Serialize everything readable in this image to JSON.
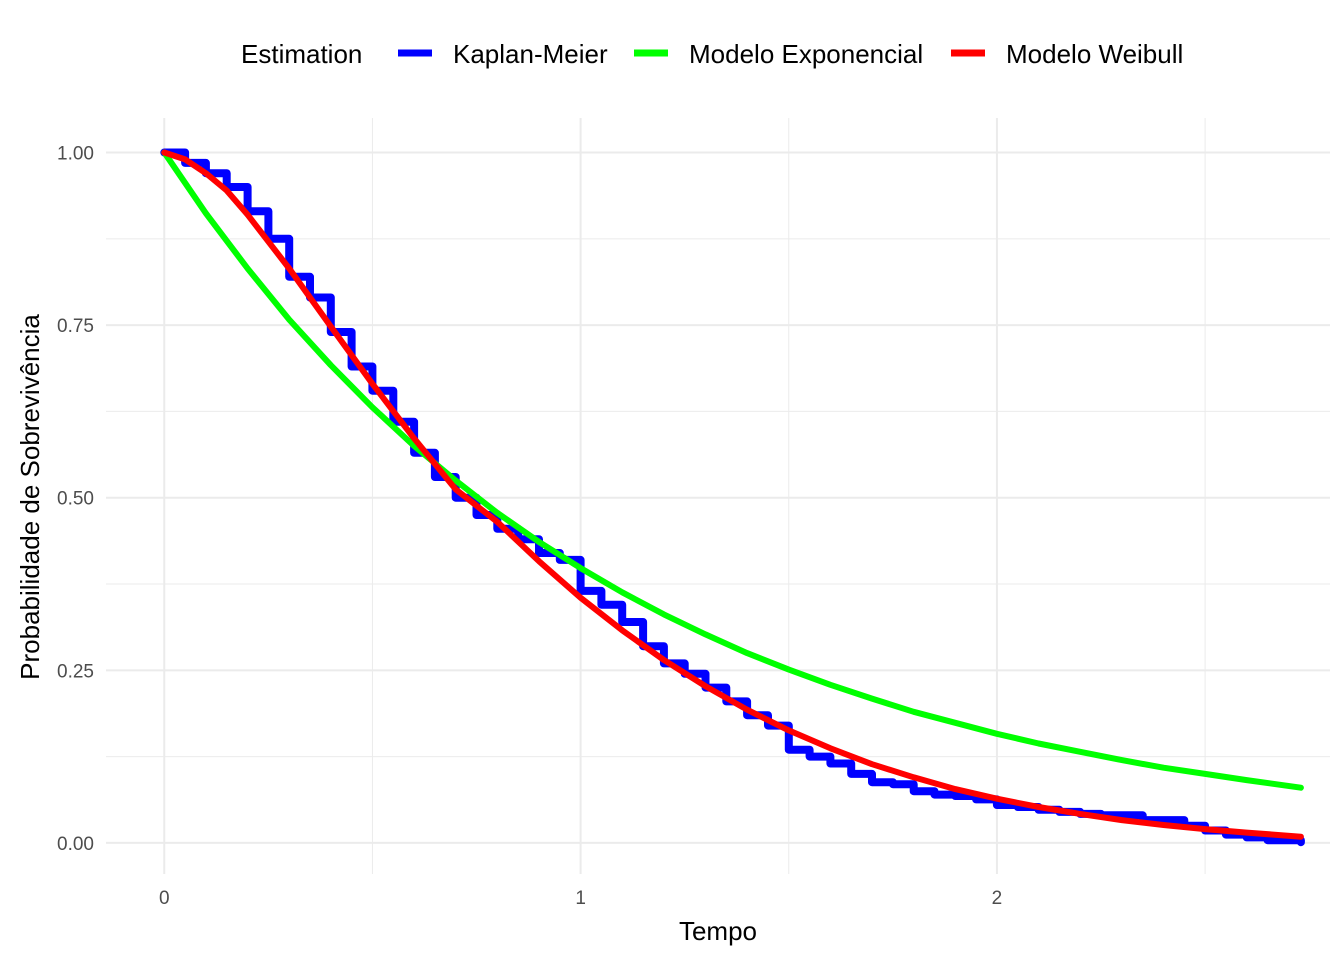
{
  "chart_data": {
    "type": "line",
    "title": "",
    "xlabel": "Tempo",
    "ylabel": "Probabilidade de Sobrevivência",
    "xlim": [
      -0.14,
      2.8
    ],
    "ylim": [
      -0.045,
      1.05
    ],
    "x_ticks": [
      0,
      1,
      2
    ],
    "x_tick_labels": [
      "0",
      "1",
      "2"
    ],
    "x_minor_ticks": [
      0.5,
      1.5,
      2.5
    ],
    "y_ticks": [
      0,
      0.25,
      0.5,
      0.75,
      1
    ],
    "y_tick_labels": [
      "0.00",
      "0.25",
      "0.50",
      "0.75",
      "1.00"
    ],
    "y_minor_ticks": [
      0.125,
      0.375,
      0.625,
      0.875
    ],
    "grid": true,
    "legend": {
      "title": "Estimation",
      "position": "top"
    },
    "series": [
      {
        "name": "Kaplan-Meier",
        "color": "#0000FF",
        "step": true,
        "x": [
          0,
          0.05,
          0.1,
          0.15,
          0.2,
          0.25,
          0.3,
          0.35,
          0.4,
          0.45,
          0.5,
          0.55,
          0.6,
          0.65,
          0.7,
          0.75,
          0.8,
          0.85,
          0.9,
          0.95,
          1.0,
          1.05,
          1.1,
          1.15,
          1.2,
          1.25,
          1.3,
          1.35,
          1.4,
          1.45,
          1.5,
          1.55,
          1.6,
          1.65,
          1.7,
          1.75,
          1.8,
          1.85,
          1.9,
          1.95,
          2.0,
          2.05,
          2.1,
          2.15,
          2.2,
          2.25,
          2.3,
          2.35,
          2.4,
          2.45,
          2.5,
          2.55,
          2.6,
          2.65,
          2.73
        ],
        "y": [
          1.0,
          0.985,
          0.97,
          0.95,
          0.915,
          0.875,
          0.82,
          0.79,
          0.74,
          0.69,
          0.655,
          0.61,
          0.565,
          0.53,
          0.5,
          0.475,
          0.455,
          0.44,
          0.42,
          0.41,
          0.365,
          0.345,
          0.32,
          0.285,
          0.26,
          0.245,
          0.225,
          0.205,
          0.185,
          0.17,
          0.135,
          0.125,
          0.115,
          0.1,
          0.088,
          0.085,
          0.075,
          0.07,
          0.068,
          0.063,
          0.055,
          0.052,
          0.048,
          0.045,
          0.042,
          0.04,
          0.04,
          0.033,
          0.033,
          0.025,
          0.018,
          0.012,
          0.008,
          0.004,
          0.001
        ]
      },
      {
        "name": "Modelo Exponencial",
        "color": "#00FF00",
        "step": false,
        "x": [
          0,
          0.1,
          0.2,
          0.3,
          0.4,
          0.5,
          0.6,
          0.7,
          0.8,
          0.9,
          1.0,
          1.1,
          1.2,
          1.3,
          1.4,
          1.5,
          1.6,
          1.7,
          1.8,
          1.9,
          2.0,
          2.1,
          2.2,
          2.3,
          2.4,
          2.5,
          2.6,
          2.73
        ],
        "y": [
          1.0,
          0.912,
          0.832,
          0.758,
          0.692,
          0.631,
          0.575,
          0.525,
          0.478,
          0.436,
          0.398,
          0.363,
          0.331,
          0.302,
          0.275,
          0.251,
          0.229,
          0.209,
          0.19,
          0.174,
          0.158,
          0.144,
          0.132,
          0.12,
          0.109,
          0.1,
          0.091,
          0.08
        ]
      },
      {
        "name": "Modelo Weibull",
        "color": "#FF0000",
        "step": false,
        "x": [
          0,
          0.05,
          0.1,
          0.15,
          0.2,
          0.3,
          0.4,
          0.5,
          0.6,
          0.7,
          0.8,
          0.9,
          1.0,
          1.1,
          1.2,
          1.3,
          1.4,
          1.5,
          1.6,
          1.7,
          1.8,
          1.9,
          2.0,
          2.1,
          2.2,
          2.3,
          2.4,
          2.5,
          2.6,
          2.73
        ],
        "y": [
          1.0,
          0.99,
          0.97,
          0.945,
          0.91,
          0.832,
          0.748,
          0.665,
          0.586,
          0.512,
          0.465,
          0.408,
          0.355,
          0.308,
          0.265,
          0.227,
          0.193,
          0.163,
          0.137,
          0.114,
          0.095,
          0.078,
          0.064,
          0.052,
          0.042,
          0.033,
          0.026,
          0.02,
          0.015,
          0.009
        ]
      }
    ]
  }
}
